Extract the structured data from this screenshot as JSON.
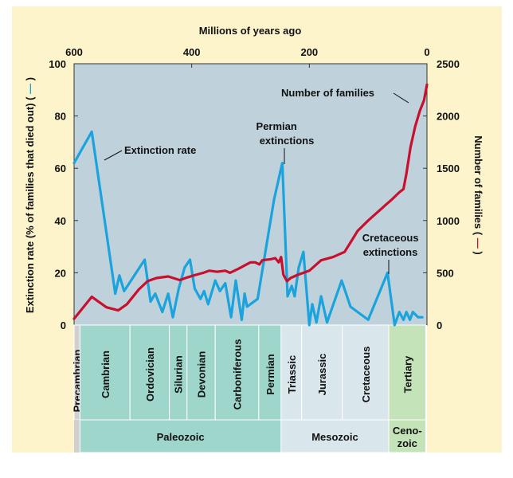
{
  "chart_data": {
    "type": "line",
    "xlabel": "Millions of years ago",
    "x_ticks": [
      600,
      400,
      200,
      0
    ],
    "xlim": [
      600,
      0
    ],
    "left_axis": {
      "label": "Extinction rate (% of families that died out) (",
      "label_end": ")",
      "ticks": [
        0,
        20,
        40,
        60,
        80,
        100
      ],
      "ylim": [
        0,
        100
      ]
    },
    "right_axis": {
      "label": "Number of families (",
      "label_end": ")",
      "ticks": [
        0,
        500,
        1000,
        1500,
        2000,
        2500
      ],
      "ylim": [
        0,
        2500
      ]
    },
    "series": [
      {
        "key": "extinction",
        "axis": "left",
        "color": "#1aa3dc",
        "points": [
          [
            600,
            62
          ],
          [
            570,
            74
          ],
          [
            530,
            12
          ],
          [
            523,
            19
          ],
          [
            515,
            13
          ],
          [
            480,
            25
          ],
          [
            470,
            9
          ],
          [
            462,
            12
          ],
          [
            450,
            5
          ],
          [
            440,
            12
          ],
          [
            432,
            3
          ],
          [
            422,
            14
          ],
          [
            412,
            22
          ],
          [
            403,
            25
          ],
          [
            395,
            14
          ],
          [
            385,
            10
          ],
          [
            379,
            13
          ],
          [
            372,
            8
          ],
          [
            360,
            17
          ],
          [
            352,
            13
          ],
          [
            343,
            16
          ],
          [
            333,
            3
          ],
          [
            325,
            17
          ],
          [
            315,
            2
          ],
          [
            310,
            12
          ],
          [
            306,
            7
          ],
          [
            288,
            10
          ],
          [
            260,
            48
          ],
          [
            246,
            62
          ],
          [
            237,
            11
          ],
          [
            230,
            15
          ],
          [
            225,
            11
          ],
          [
            218,
            22
          ],
          [
            210,
            28
          ],
          [
            200,
            0
          ],
          [
            195,
            8
          ],
          [
            188,
            1
          ],
          [
            180,
            11
          ],
          [
            170,
            1
          ],
          [
            145,
            17
          ],
          [
            130,
            7
          ],
          [
            100,
            2
          ],
          [
            67,
            20
          ],
          [
            55,
            0
          ],
          [
            47,
            5
          ],
          [
            40,
            2
          ],
          [
            35,
            5
          ],
          [
            29,
            2
          ],
          [
            24,
            5
          ],
          [
            15,
            3
          ],
          [
            8,
            3
          ]
        ]
      },
      {
        "key": "families",
        "axis": "right",
        "color": "#c8102e",
        "points": [
          [
            600,
            60
          ],
          [
            570,
            270
          ],
          [
            545,
            170
          ],
          [
            525,
            140
          ],
          [
            510,
            200
          ],
          [
            490,
            340
          ],
          [
            475,
            420
          ],
          [
            460,
            450
          ],
          [
            440,
            465
          ],
          [
            420,
            430
          ],
          [
            408,
            455
          ],
          [
            393,
            480
          ],
          [
            380,
            500
          ],
          [
            370,
            520
          ],
          [
            357,
            510
          ],
          [
            343,
            520
          ],
          [
            335,
            500
          ],
          [
            320,
            540
          ],
          [
            310,
            570
          ],
          [
            300,
            600
          ],
          [
            292,
            600
          ],
          [
            285,
            580
          ],
          [
            280,
            620
          ],
          [
            265,
            630
          ],
          [
            258,
            640
          ],
          [
            252,
            600
          ],
          [
            248,
            650
          ],
          [
            244,
            480
          ],
          [
            238,
            420
          ],
          [
            232,
            450
          ],
          [
            220,
            480
          ],
          [
            200,
            520
          ],
          [
            180,
            620
          ],
          [
            160,
            650
          ],
          [
            140,
            700
          ],
          [
            130,
            790
          ],
          [
            118,
            900
          ],
          [
            100,
            1000
          ],
          [
            90,
            1050
          ],
          [
            80,
            1100
          ],
          [
            70,
            1150
          ],
          [
            60,
            1200
          ],
          [
            47,
            1270
          ],
          [
            40,
            1300
          ],
          [
            35,
            1450
          ],
          [
            28,
            1700
          ],
          [
            20,
            1900
          ],
          [
            12,
            2050
          ],
          [
            5,
            2150
          ],
          [
            0,
            2300
          ]
        ]
      }
    ],
    "annotations": {
      "extinction_rate": "Extinction rate",
      "number_of_families": "Number of families",
      "permian": [
        "Permian",
        "extinctions"
      ],
      "cretaceous": [
        "Cretaceous",
        "extinctions"
      ]
    },
    "periods": [
      {
        "name": "Precambrian",
        "start": 600,
        "end": 590,
        "color": "#d0d0d0"
      },
      {
        "name": "Cambrian",
        "start": 590,
        "end": 505,
        "color": "#9fd6cb"
      },
      {
        "name": "Ordovician",
        "start": 505,
        "end": 438,
        "color": "#9fd6cb"
      },
      {
        "name": "Silurian",
        "start": 438,
        "end": 408,
        "color": "#9fd6cb"
      },
      {
        "name": "Devonian",
        "start": 408,
        "end": 360,
        "color": "#9fd6cb"
      },
      {
        "name": "Carboniferous",
        "start": 360,
        "end": 286,
        "color": "#9fd6cb"
      },
      {
        "name": "Permian",
        "start": 286,
        "end": 248,
        "color": "#9fd6cb"
      },
      {
        "name": "Triassic",
        "start": 248,
        "end": 213,
        "color": "#d9e7ec"
      },
      {
        "name": "Jurassic",
        "start": 213,
        "end": 144,
        "color": "#d9e7ec"
      },
      {
        "name": "Cretaceous",
        "start": 144,
        "end": 65,
        "color": "#d9e7ec"
      },
      {
        "name": "Tertiary",
        "start": 65,
        "end": 2,
        "color": "#c5e3b9"
      }
    ],
    "eras": [
      {
        "name": "Paleozoic",
        "start": 590,
        "end": 248,
        "color": "#9fd6cb"
      },
      {
        "name": "Mesozoic",
        "start": 248,
        "end": 65,
        "color": "#d9e7ec"
      },
      {
        "name": "Ceno-\nzoic",
        "lines": [
          "Ceno-",
          "zoic"
        ],
        "start": 65,
        "end": 2,
        "color": "#c5e3b9"
      }
    ]
  }
}
